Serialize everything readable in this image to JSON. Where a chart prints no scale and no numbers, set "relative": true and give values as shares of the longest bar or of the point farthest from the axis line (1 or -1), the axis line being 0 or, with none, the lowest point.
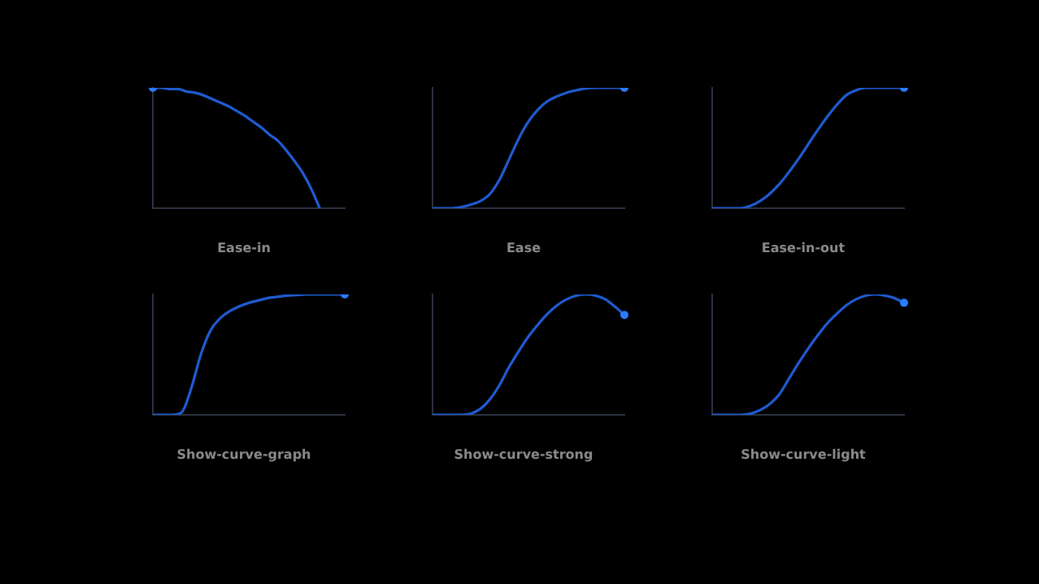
{
  "chart_data": [
    {
      "type": "line",
      "relative": true,
      "title": "Ease-in",
      "categories": [
        null,
        null,
        null,
        null,
        null,
        null,
        null,
        null,
        null,
        null,
        null,
        null,
        null,
        null,
        null,
        null,
        null,
        null,
        null,
        null,
        null,
        null,
        null,
        null
      ],
      "series": [
        {
          "color": "#1f5bd1",
          "values": [
            1,
            1,
            0.99,
            0.99,
            0.97,
            0.96,
            0.94,
            0.91,
            0.88,
            0.85,
            0.81,
            0.77,
            0.72,
            0.67,
            0.61,
            0.56,
            0.48,
            0.39,
            0.29,
            0.16,
            0,
            null,
            null,
            null
          ]
        }
      ]
    },
    {
      "type": "line",
      "relative": true,
      "title": "Ease",
      "categories": [
        null,
        null,
        null,
        null,
        null,
        null,
        null,
        null,
        null,
        null,
        null,
        null,
        null,
        null,
        null,
        null,
        null,
        null,
        null,
        null,
        null
      ],
      "series": [
        {
          "color": "#1f5bd1",
          "values": [
            0,
            0,
            0,
            0.01,
            0.03,
            0.06,
            0.12,
            0.24,
            0.41,
            0.58,
            0.72,
            0.82,
            0.89,
            0.93,
            0.96,
            0.98,
            0.995,
            1,
            1,
            1,
            1
          ]
        }
      ]
    },
    {
      "type": "line",
      "relative": true,
      "title": "Ease-in-out",
      "categories": [
        null,
        null,
        null,
        null,
        null,
        null,
        null,
        null,
        null,
        null,
        null,
        null,
        null,
        null,
        null,
        null,
        null,
        null,
        null,
        null,
        null
      ],
      "series": [
        {
          "color": "#1f5bd1",
          "values": [
            0,
            0,
            0,
            0,
            0.02,
            0.06,
            0.12,
            0.2,
            0.3,
            0.41,
            0.53,
            0.65,
            0.76,
            0.86,
            0.94,
            0.98,
            1,
            1,
            1,
            1,
            1
          ]
        }
      ]
    },
    {
      "type": "line",
      "relative": true,
      "title": "Show-curve-graph",
      "categories": [
        null,
        null,
        null,
        null,
        null,
        null,
        null,
        null,
        null,
        null,
        null,
        null,
        null,
        null,
        null,
        null,
        null,
        null,
        null,
        null,
        null
      ],
      "series": [
        {
          "color": "#1f5bd1",
          "values": [
            0,
            0,
            0,
            0.02,
            0.22,
            0.5,
            0.7,
            0.8,
            0.86,
            0.9,
            0.93,
            0.95,
            0.97,
            0.98,
            0.99,
            0.995,
            1,
            1,
            1,
            1,
            1
          ]
        }
      ]
    },
    {
      "type": "line",
      "relative": true,
      "title": "Show-curve-strong",
      "categories": [
        null,
        null,
        null,
        null,
        null,
        null,
        null,
        null,
        null,
        null,
        null,
        null,
        null,
        null,
        null,
        null,
        null,
        null,
        null,
        null,
        null
      ],
      "series": [
        {
          "color": "#1f5bd1",
          "values": [
            0,
            0,
            0,
            0,
            0.01,
            0.05,
            0.13,
            0.25,
            0.4,
            0.53,
            0.65,
            0.75,
            0.84,
            0.91,
            0.96,
            0.99,
            1,
            0.99,
            0.96,
            0.9,
            0.83
          ]
        }
      ]
    },
    {
      "type": "line",
      "relative": true,
      "title": "Show-curve-light",
      "categories": [
        null,
        null,
        null,
        null,
        null,
        null,
        null,
        null,
        null,
        null,
        null,
        null,
        null,
        null,
        null,
        null,
        null,
        null,
        null,
        null,
        null
      ],
      "series": [
        {
          "color": "#1f5bd1",
          "values": [
            0,
            0,
            0,
            0,
            0.01,
            0.04,
            0.09,
            0.17,
            0.3,
            0.43,
            0.55,
            0.66,
            0.76,
            0.84,
            0.91,
            0.96,
            0.99,
            1,
            0.99,
            0.97,
            0.93
          ]
        }
      ]
    }
  ]
}
